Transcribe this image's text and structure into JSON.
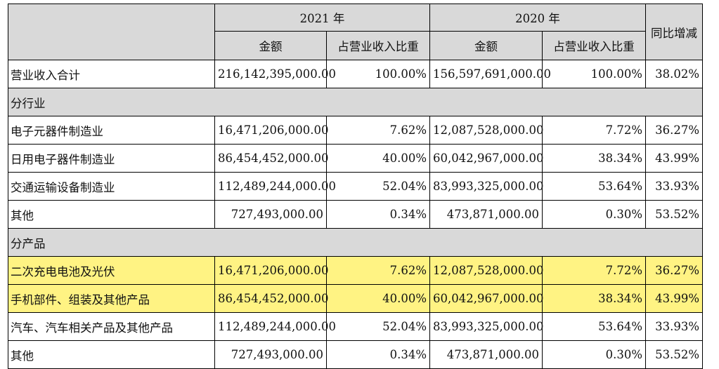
{
  "header": {
    "year_2021": "2021 年",
    "year_2020": "2020 年",
    "yoy": "同比增减",
    "amount_2021": "金额",
    "ratio_2021": "占营业收入比重",
    "amount_2020": "金额",
    "ratio_2020": "占营业收入比重"
  },
  "total": {
    "label": "营业收入合计",
    "amt2021": "216,142,395,000.00",
    "pct2021": "100.00%",
    "amt2020": "156,597,691,000.00",
    "pct2020": "100.00%",
    "yoy": "38.02%"
  },
  "section_industry": "分行业",
  "industry": [
    {
      "label": "电子元器件制造业",
      "amt2021": "16,471,206,000.00",
      "pct2021": "7.62%",
      "amt2020": "12,087,528,000.00",
      "pct2020": "7.72%",
      "yoy": "36.27%"
    },
    {
      "label": "日用电子器件制造业",
      "amt2021": "86,454,452,000.00",
      "pct2021": "40.00%",
      "amt2020": "60,042,967,000.00",
      "pct2020": "38.34%",
      "yoy": "43.99%"
    },
    {
      "label": "交通运输设备制造业",
      "amt2021": "112,489,244,000.00",
      "pct2021": "52.04%",
      "amt2020": "83,993,325,000.00",
      "pct2020": "53.64%",
      "yoy": "33.93%"
    },
    {
      "label": "其他",
      "amt2021": "727,493,000.00",
      "pct2021": "0.34%",
      "amt2020": "473,871,000.00",
      "pct2020": "0.30%",
      "yoy": "53.52%"
    }
  ],
  "section_product": "分产品",
  "product": [
    {
      "label": "二次充电电池及光伏",
      "amt2021": "16,471,206,000.00",
      "pct2021": "7.62%",
      "amt2020": "12,087,528,000.00",
      "pct2020": "7.72%",
      "yoy": "36.27%",
      "highlight": "#fff383"
    },
    {
      "label": "手机部件、组装及其他产品",
      "amt2021": "86,454,452,000.00",
      "pct2021": "40.00%",
      "amt2020": "60,042,967,000.00",
      "pct2020": "38.34%",
      "yoy": "43.99%",
      "highlight": "#fff383"
    },
    {
      "label": "汽车、汽车相关产品及其他产品",
      "amt2021": "112,489,244,000.00",
      "pct2021": "52.04%",
      "amt2020": "83,993,325,000.00",
      "pct2020": "53.64%",
      "yoy": "33.93%"
    },
    {
      "label": "其他",
      "amt2021": "727,493,000.00",
      "pct2021": "0.34%",
      "amt2020": "473,871,000.00",
      "pct2020": "0.30%",
      "yoy": "53.52%"
    }
  ]
}
